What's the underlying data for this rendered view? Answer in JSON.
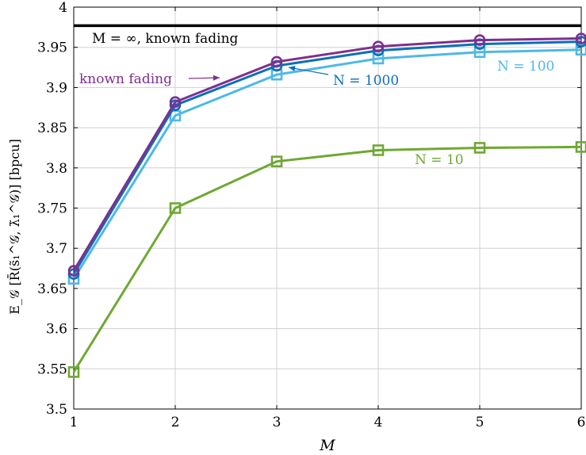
{
  "chart_data": {
    "type": "line",
    "title": "",
    "xlabel": "M",
    "ylabel": "E_𝒢 [R̄(s̃₁^𝒢, λ̃₁^𝒢)] [bpcu]",
    "xlim": [
      1,
      6
    ],
    "ylim": [
      3.5,
      4.0
    ],
    "x_ticks": [
      "1",
      "2",
      "3",
      "4",
      "5",
      "6"
    ],
    "y_ticks": [
      "3.5",
      "3.55",
      "3.6",
      "3.65",
      "3.7",
      "3.75",
      "3.8",
      "3.85",
      "3.9",
      "3.95",
      "4"
    ],
    "grid": true,
    "x": [
      1,
      2,
      3,
      4,
      5,
      6
    ],
    "reference_line": {
      "label": "M = ∞, known fading",
      "y": 3.977,
      "color": "#000000"
    },
    "series": [
      {
        "name": "known fading",
        "marker": "circle",
        "color": "#7e2f8e",
        "values": [
          3.672,
          3.882,
          3.932,
          3.951,
          3.959,
          3.961
        ]
      },
      {
        "name": "N = 1000",
        "marker": "circle",
        "color": "#0a6fb8",
        "values": [
          3.668,
          3.878,
          3.927,
          3.946,
          3.954,
          3.957
        ]
      },
      {
        "name": "N = 100",
        "marker": "square",
        "color": "#4db8e8",
        "values": [
          3.662,
          3.865,
          3.916,
          3.936,
          3.944,
          3.947
        ]
      },
      {
        "name": "N = 10",
        "marker": "square",
        "color": "#6fa832",
        "values": [
          3.546,
          3.75,
          3.808,
          3.822,
          3.825,
          3.826
        ]
      }
    ],
    "annotations": [
      {
        "text": "known fading",
        "series": "known fading",
        "arrow": true
      },
      {
        "text": "N = 1000",
        "series": "N = 1000",
        "arrow": true
      },
      {
        "text": "N = 100",
        "series": "N = 100",
        "arrow": false
      },
      {
        "text": "N = 10",
        "series": "N = 10",
        "arrow": false
      }
    ]
  }
}
